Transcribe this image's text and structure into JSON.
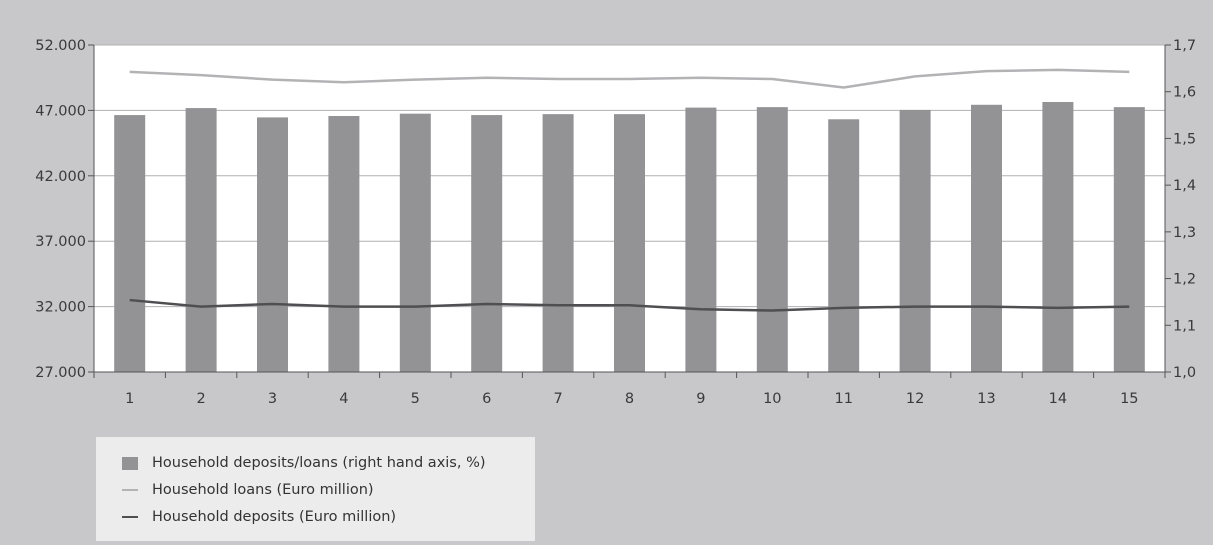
{
  "chart_data": {
    "type": "bar",
    "categories": [
      "1",
      "2",
      "3",
      "4",
      "5",
      "6",
      "7",
      "8",
      "9",
      "10",
      "11",
      "12",
      "13",
      "14",
      "15"
    ],
    "left_axis": {
      "min": 27000,
      "max": 52000,
      "ticks": [
        "27.000",
        "32.000",
        "37.000",
        "42.000",
        "47.000",
        "52.000"
      ],
      "tick_values": [
        27000,
        32000,
        37000,
        42000,
        47000,
        52000
      ]
    },
    "right_axis": {
      "min": 1.0,
      "max": 1.7,
      "ticks": [
        "1,0",
        "1,1",
        "1,2",
        "1,3",
        "1,4",
        "1,5",
        "1,6",
        "1,7"
      ],
      "tick_values": [
        1.0,
        1.1,
        1.2,
        1.3,
        1.4,
        1.5,
        1.6,
        1.7
      ]
    },
    "grid": true,
    "legend_position": "bottom-left",
    "series": [
      {
        "name": "Household deposits/loans (right hand axis, %)",
        "type": "bar",
        "axis": "right",
        "color": "#939396",
        "values": [
          1.55,
          1.565,
          1.545,
          1.548,
          1.553,
          1.55,
          1.552,
          1.552,
          1.566,
          1.567,
          1.541,
          1.561,
          1.572,
          1.578,
          1.567
        ]
      },
      {
        "name": "Household loans (Euro million)",
        "type": "line",
        "axis": "left",
        "color": "#b3b3b6",
        "values": [
          49950,
          49700,
          49350,
          49150,
          49350,
          49500,
          49400,
          49400,
          49500,
          49400,
          48750,
          49600,
          50000,
          50100,
          49950
        ]
      },
      {
        "name": "Household deposits (Euro million)",
        "type": "line",
        "axis": "left",
        "color": "#4f4f52",
        "values": [
          32500,
          32000,
          32200,
          32000,
          32000,
          32200,
          32100,
          32100,
          31800,
          31700,
          31900,
          32000,
          32000,
          31900,
          32000
        ]
      }
    ]
  }
}
